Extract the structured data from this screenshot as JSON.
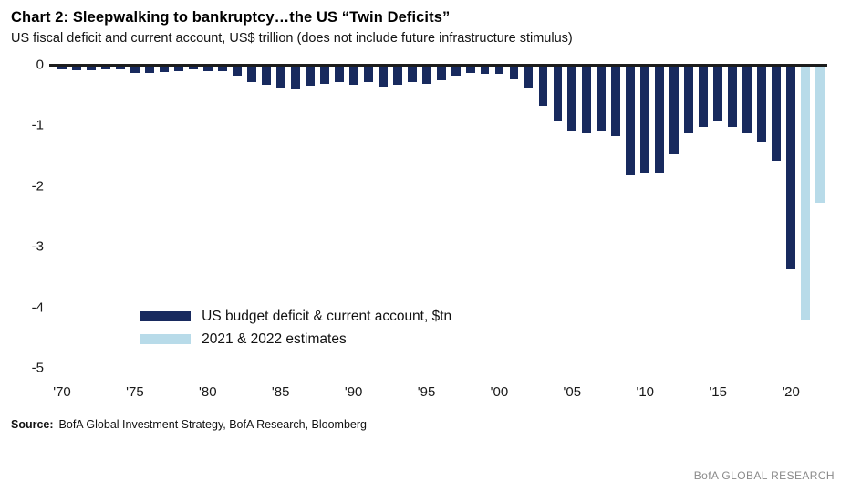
{
  "chart_data": {
    "type": "bar",
    "title": "Chart 2: Sleepwalking to bankruptcy…the US “Twin Deficits”",
    "subtitle": "US fiscal deficit and current account, US$ trillion (does not include future infrastructure stimulus)",
    "xlabel": "",
    "ylabel": "US$ trillion",
    "ylim": [
      -5,
      0
    ],
    "yticks": [
      0,
      -1,
      -2,
      -3,
      -4,
      -5
    ],
    "ytick_labels": [
      "0",
      "-1",
      "-2",
      "-3",
      "-4",
      "-5"
    ],
    "xtick_labels": [
      "'70",
      "'75",
      "'80",
      "'85",
      "'90",
      "'95",
      "'00",
      "'05",
      "'10",
      "'15",
      "'20"
    ],
    "xtick_years": [
      1970,
      1975,
      1980,
      1985,
      1990,
      1995,
      2000,
      2005,
      2010,
      2015,
      2020
    ],
    "years": [
      1970,
      1971,
      1972,
      1973,
      1974,
      1975,
      1976,
      1977,
      1978,
      1979,
      1980,
      1981,
      1982,
      1983,
      1984,
      1985,
      1986,
      1987,
      1988,
      1989,
      1990,
      1991,
      1992,
      1993,
      1994,
      1995,
      1996,
      1997,
      1998,
      1999,
      2000,
      2001,
      2002,
      2003,
      2004,
      2005,
      2006,
      2007,
      2008,
      2009,
      2010,
      2011,
      2012,
      2013,
      2014,
      2015,
      2016,
      2017,
      2018,
      2019,
      2020,
      2021,
      2022
    ],
    "values": [
      -0.05,
      -0.06,
      -0.06,
      -0.04,
      -0.04,
      -0.1,
      -0.1,
      -0.09,
      -0.07,
      -0.04,
      -0.08,
      -0.08,
      -0.15,
      -0.25,
      -0.3,
      -0.35,
      -0.38,
      -0.32,
      -0.28,
      -0.25,
      -0.3,
      -0.25,
      -0.33,
      -0.3,
      -0.25,
      -0.28,
      -0.22,
      -0.15,
      -0.1,
      -0.12,
      -0.12,
      -0.2,
      -0.35,
      -0.65,
      -0.9,
      -1.05,
      -1.1,
      -1.05,
      -1.15,
      -1.8,
      -1.75,
      -1.75,
      -1.45,
      -1.1,
      -1.0,
      -0.9,
      -1.0,
      -1.1,
      -1.25,
      -1.55,
      -3.35,
      -4.2,
      -2.25
    ],
    "estimate_start_year": 2021,
    "series_colors": {
      "actual": "#182a5e",
      "estimate": "#b8dbe9"
    },
    "legend": [
      {
        "label": "US budget deficit & current account, $tn",
        "color_key": "actual"
      },
      {
        "label": "2021 & 2022 estimates",
        "color_key": "estimate"
      }
    ],
    "legend_position": "lower-left",
    "grid": "off"
  },
  "footer": {
    "source_label": "Source:",
    "source_text": "BofA Global Investment Strategy, BofA Research, Bloomberg",
    "branding": "BofA GLOBAL RESEARCH"
  }
}
